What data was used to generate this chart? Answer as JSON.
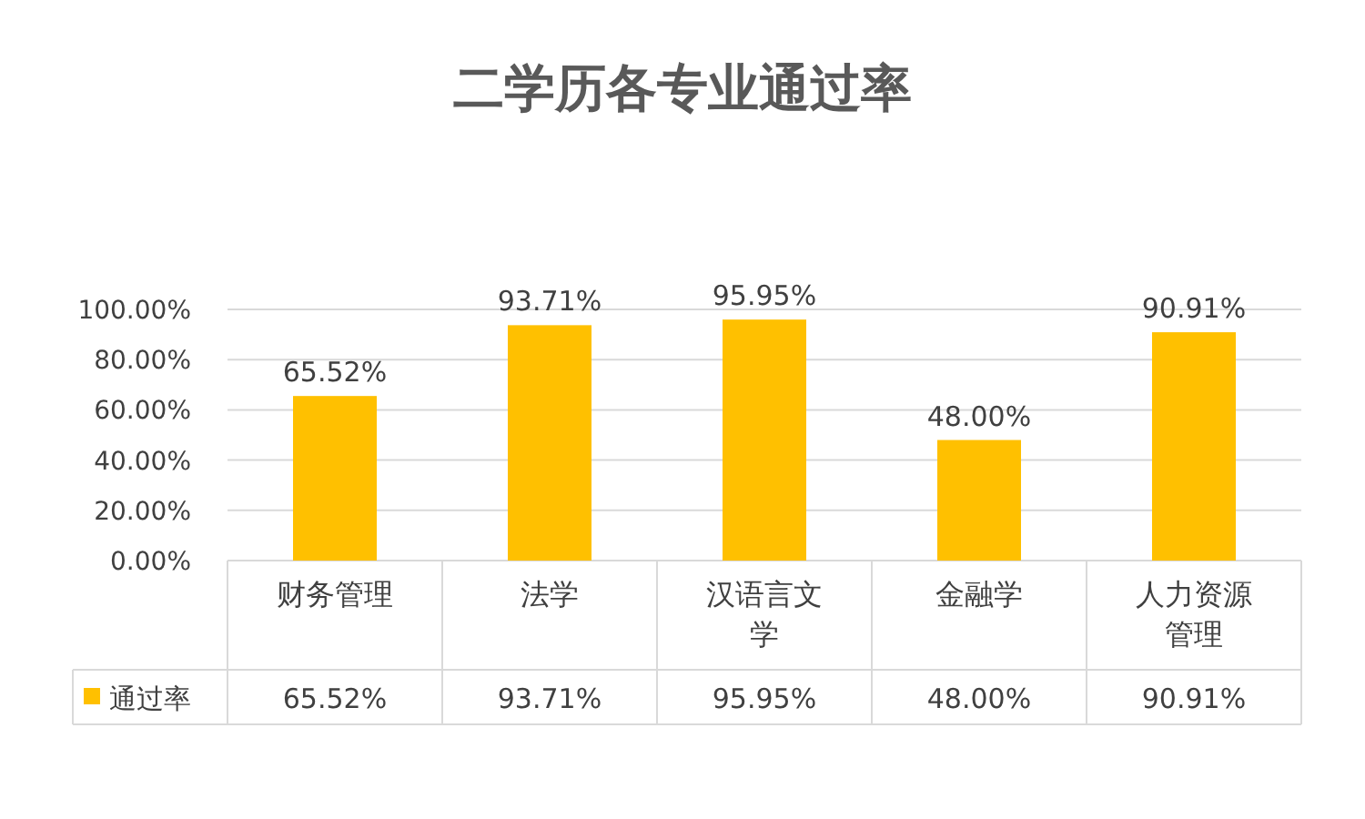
{
  "chart_data": {
    "type": "bar",
    "title": "二学历各专业通过率",
    "categories": [
      "财务管理",
      "法学",
      "汉语言文学",
      "金融学",
      "人力资源管理"
    ],
    "series": [
      {
        "name": "通过率",
        "color": "#ffc000",
        "values": [
          65.52,
          93.71,
          95.95,
          48.0,
          90.91
        ],
        "value_labels": [
          "65.52%",
          "93.71%",
          "95.95%",
          "48.00%",
          "90.91%"
        ]
      }
    ],
    "ylim": [
      0,
      100
    ],
    "yticks": [
      {
        "value": 0,
        "label": "0.00%"
      },
      {
        "value": 20,
        "label": "20.00%"
      },
      {
        "value": 40,
        "label": "40.00%"
      },
      {
        "value": 60,
        "label": "60.00%"
      },
      {
        "value": 80,
        "label": "80.00%"
      },
      {
        "value": 100,
        "label": "100.00%"
      }
    ],
    "grid": "y",
    "legend": "bottom"
  }
}
